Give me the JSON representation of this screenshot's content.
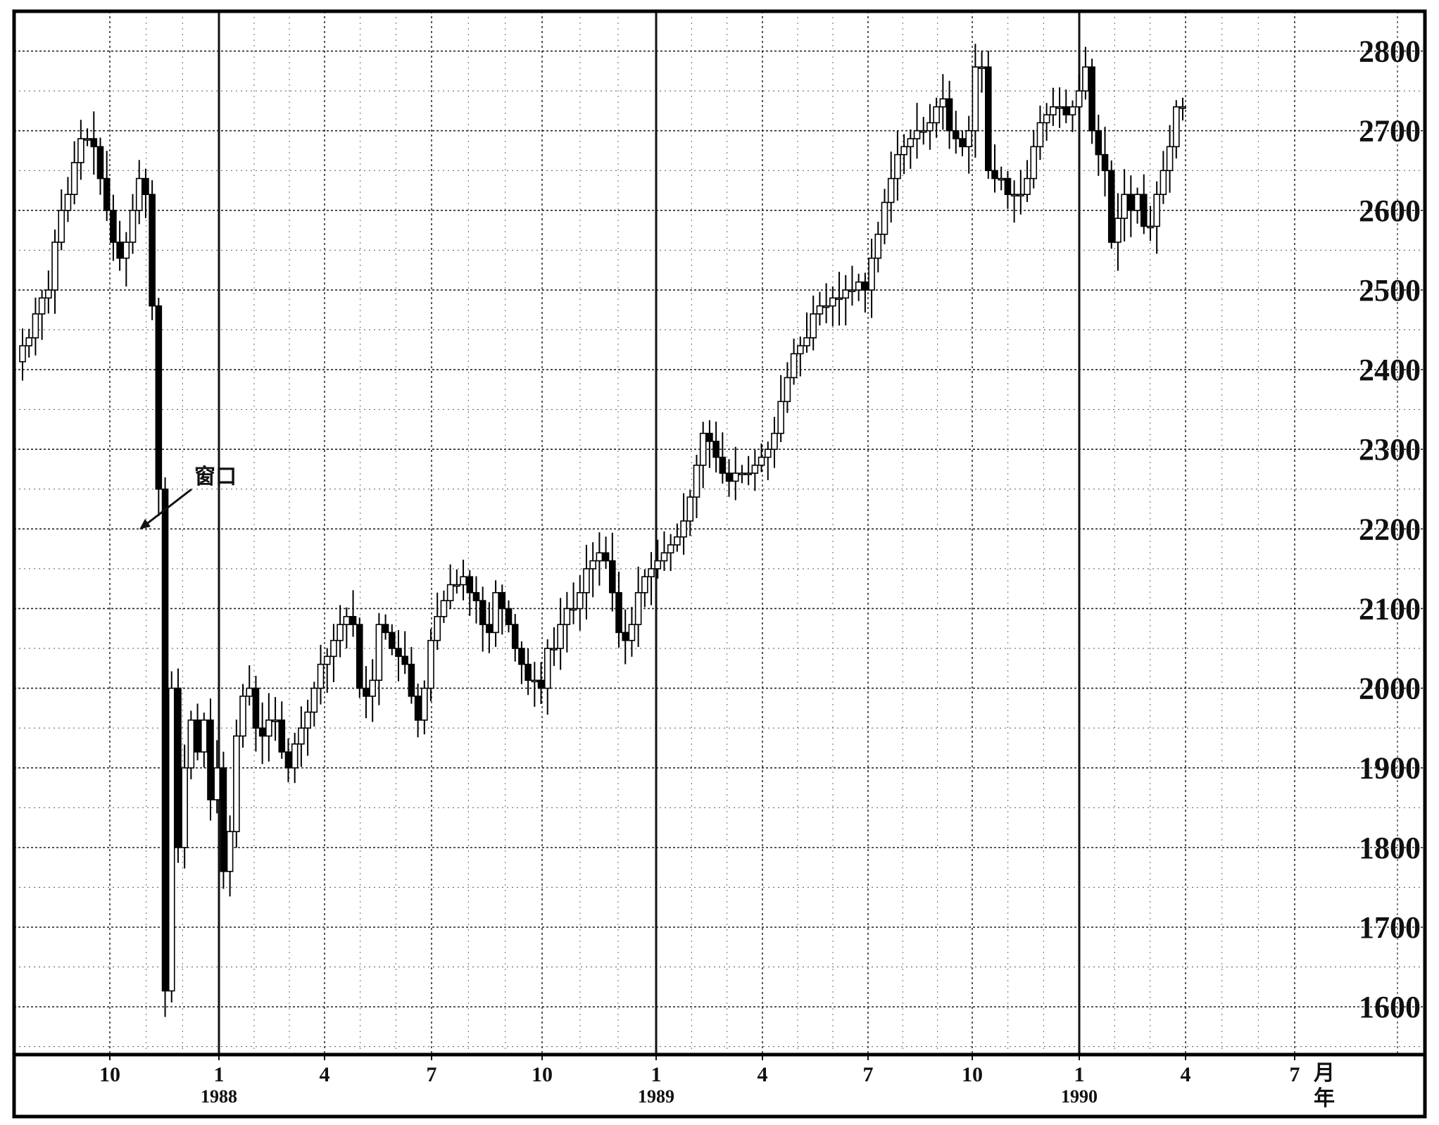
{
  "chart_data": {
    "type": "candlestick",
    "y_axis": {
      "position": "right",
      "range": [
        1540,
        2850
      ],
      "ticks": [
        1600,
        1700,
        1800,
        1900,
        2000,
        2100,
        2200,
        2300,
        2400,
        2500,
        2600,
        2700,
        2800
      ]
    },
    "x_axis": {
      "ticks": [
        {
          "label": "10",
          "year": ""
        },
        {
          "label": "1",
          "year": "1988"
        },
        {
          "label": "4",
          "year": ""
        },
        {
          "label": "7",
          "year": ""
        },
        {
          "label": "10",
          "year": ""
        },
        {
          "label": "1",
          "year": "1989"
        },
        {
          "label": "4",
          "year": ""
        },
        {
          "label": "7",
          "year": ""
        },
        {
          "label": "10",
          "year": ""
        },
        {
          "label": "1",
          "year": "1990"
        },
        {
          "label": "4",
          "year": ""
        },
        {
          "label": "7",
          "year": ""
        }
      ],
      "unit_month": "月",
      "unit_year": "年"
    },
    "grid": true,
    "annotation": {
      "text": "窗口"
    },
    "weekly_close": [
      2430,
      2440,
      2470,
      2490,
      2500,
      2560,
      2600,
      2620,
      2660,
      2690,
      2690,
      2680,
      2640,
      2600,
      2560,
      2540,
      2560,
      2600,
      2640,
      2620,
      2480,
      2250,
      1620,
      2000,
      1800,
      1900,
      1960,
      1920,
      1960,
      1860,
      1900,
      1770,
      1820,
      1940,
      1990,
      2000,
      1950,
      1940,
      1960,
      1960,
      1920,
      1900,
      1930,
      1950,
      1970,
      2000,
      2030,
      2040,
      2060,
      2080,
      2090,
      2080,
      2000,
      1990,
      2010,
      2080,
      2070,
      2050,
      2040,
      2030,
      1990,
      1960,
      2000,
      2060,
      2090,
      2110,
      2130,
      2130,
      2140,
      2120,
      2110,
      2080,
      2070,
      2120,
      2100,
      2080,
      2050,
      2030,
      2010,
      2010,
      2000,
      2050,
      2050,
      2080,
      2100,
      2100,
      2120,
      2150,
      2160,
      2170,
      2160,
      2120,
      2070,
      2060,
      2080,
      2120,
      2140,
      2150,
      2160,
      2170,
      2180,
      2190,
      2210,
      2240,
      2280,
      2320,
      2310,
      2290,
      2270,
      2260,
      2270,
      2270,
      2270,
      2280,
      2290,
      2300,
      2320,
      2360,
      2390,
      2420,
      2430,
      2440,
      2470,
      2480,
      2480,
      2490,
      2490,
      2500,
      2500,
      2510,
      2500,
      2540,
      2570,
      2610,
      2640,
      2670,
      2680,
      2690,
      2700,
      2700,
      2710,
      2730,
      2740,
      2700,
      2690,
      2680,
      2700,
      2780,
      2780,
      2650,
      2640,
      2640,
      2620,
      2620,
      2620,
      2640,
      2680,
      2710,
      2720,
      2730,
      2730,
      2720,
      2730,
      2750,
      2780,
      2700,
      2670,
      2650,
      2560,
      2590,
      2620,
      2600,
      2620,
      2580,
      2580,
      2620,
      2650,
      2680,
      2730,
      2730
    ]
  }
}
